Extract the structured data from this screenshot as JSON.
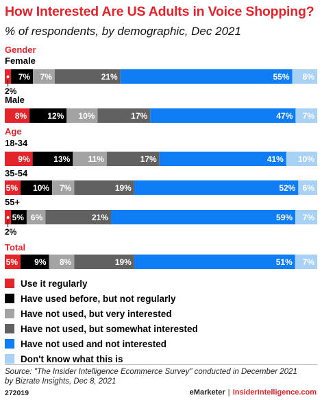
{
  "title": "How Interested Are US Adults in Voice Shopping?",
  "subtitle": "% of respondents, by demographic, Dec 2021",
  "chart_data": {
    "type": "bar",
    "stacked": true,
    "orientation": "horizontal",
    "series": [
      {
        "name": "Use it regularly",
        "color": "#e3242b"
      },
      {
        "name": "Have used before, but not regularly",
        "color": "#000000"
      },
      {
        "name": "Have not used, but very interested",
        "color": "#a3a3a3"
      },
      {
        "name": "Have not used, but somewhat interested",
        "color": "#616161"
      },
      {
        "name": "Have not used and not interested",
        "color": "#0e7cf4"
      },
      {
        "name": "Don't know what this is",
        "color": "#a8d2f5"
      }
    ],
    "groups": [
      {
        "label": "Gender",
        "rows": [
          {
            "label": "Female",
            "values": [
              2,
              7,
              7,
              21,
              55,
              8
            ],
            "labels": [
              "2%",
              "7%",
              "7%",
              "21%",
              "55%",
              "8%"
            ]
          },
          {
            "label": "Male",
            "values": [
              8,
              12,
              10,
              17,
              47,
              7
            ],
            "labels": [
              "8%",
              "12%",
              "10%",
              "17%",
              "47%",
              "7%"
            ]
          }
        ]
      },
      {
        "label": "Age",
        "rows": [
          {
            "label": "18-34",
            "values": [
              9,
              13,
              11,
              17,
              41,
              10
            ],
            "labels": [
              "9%",
              "13%",
              "11%",
              "17%",
              "41%",
              "10%"
            ]
          },
          {
            "label": "35-54",
            "values": [
              5,
              10,
              7,
              19,
              52,
              6
            ],
            "labels": [
              "5%",
              "10%",
              "7%",
              "19%",
              "52%",
              "6%"
            ]
          },
          {
            "label": "55+",
            "values": [
              2,
              5,
              6,
              21,
              59,
              7
            ],
            "labels": [
              "2%",
              "5%",
              "6%",
              "21%",
              "59%",
              "7%"
            ]
          }
        ]
      },
      {
        "label": "Total",
        "rows": [
          {
            "label": "",
            "values": [
              5,
              9,
              8,
              19,
              51,
              7
            ],
            "labels": [
              "5%",
              "9%",
              "8%",
              "19%",
              "51%",
              "7%"
            ]
          }
        ]
      }
    ]
  },
  "source": "Source: \"The Insider Intelligence Ecommerce Survey\" conducted in December 2021 by Bizrate Insights, Dec 8, 2021",
  "chart_id": "272019",
  "brand_left": "eMarketer",
  "brand_sep": "|",
  "brand_right": "InsiderIntelligence.com"
}
